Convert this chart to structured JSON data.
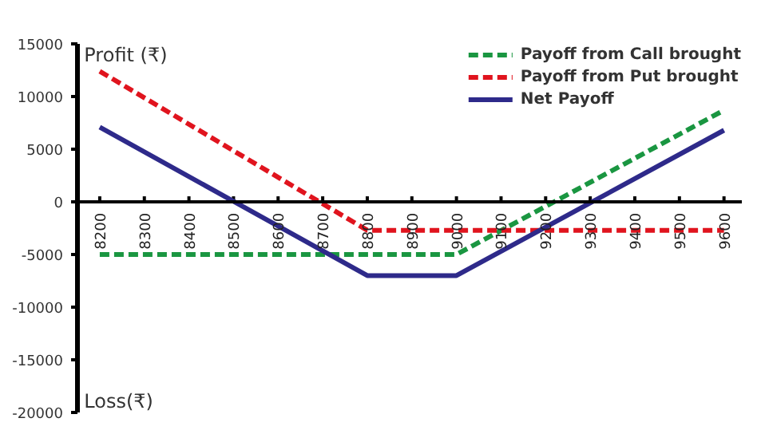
{
  "chart_data": {
    "type": "line",
    "annotations": [
      "Profit (₹)",
      "Loss(₹)"
    ],
    "xlim": [
      8150,
      9640
    ],
    "xticks": [
      8200,
      8300,
      8400,
      8500,
      8600,
      8700,
      8800,
      8900,
      9000,
      9100,
      9200,
      9300,
      9400,
      9500,
      9600
    ],
    "ylim": [
      -20000,
      15000
    ],
    "yticks": [
      -20000,
      -15000,
      -10000,
      -5000,
      0,
      5000,
      10000,
      15000
    ],
    "grid": false,
    "legend": "top right",
    "series": [
      {
        "name": "Payoff from Call brought",
        "color": "#1a9641",
        "line_style": "dashed",
        "x": [
          8200,
          9000,
          9600
        ],
        "values": [
          -5000,
          -5000,
          8700
        ]
      },
      {
        "name": "Payoff from Put brought",
        "color": "#e0141e",
        "line_style": "dashed",
        "x": [
          8200,
          8800,
          9600
        ],
        "values": [
          12400,
          -2700,
          -2700
        ]
      },
      {
        "name": "Net Payoff",
        "color": "#2e2a8a",
        "line_style": "solid",
        "x": [
          8200,
          8800,
          9000,
          9600
        ],
        "values": [
          7100,
          -7000,
          -7000,
          6800
        ]
      }
    ]
  }
}
